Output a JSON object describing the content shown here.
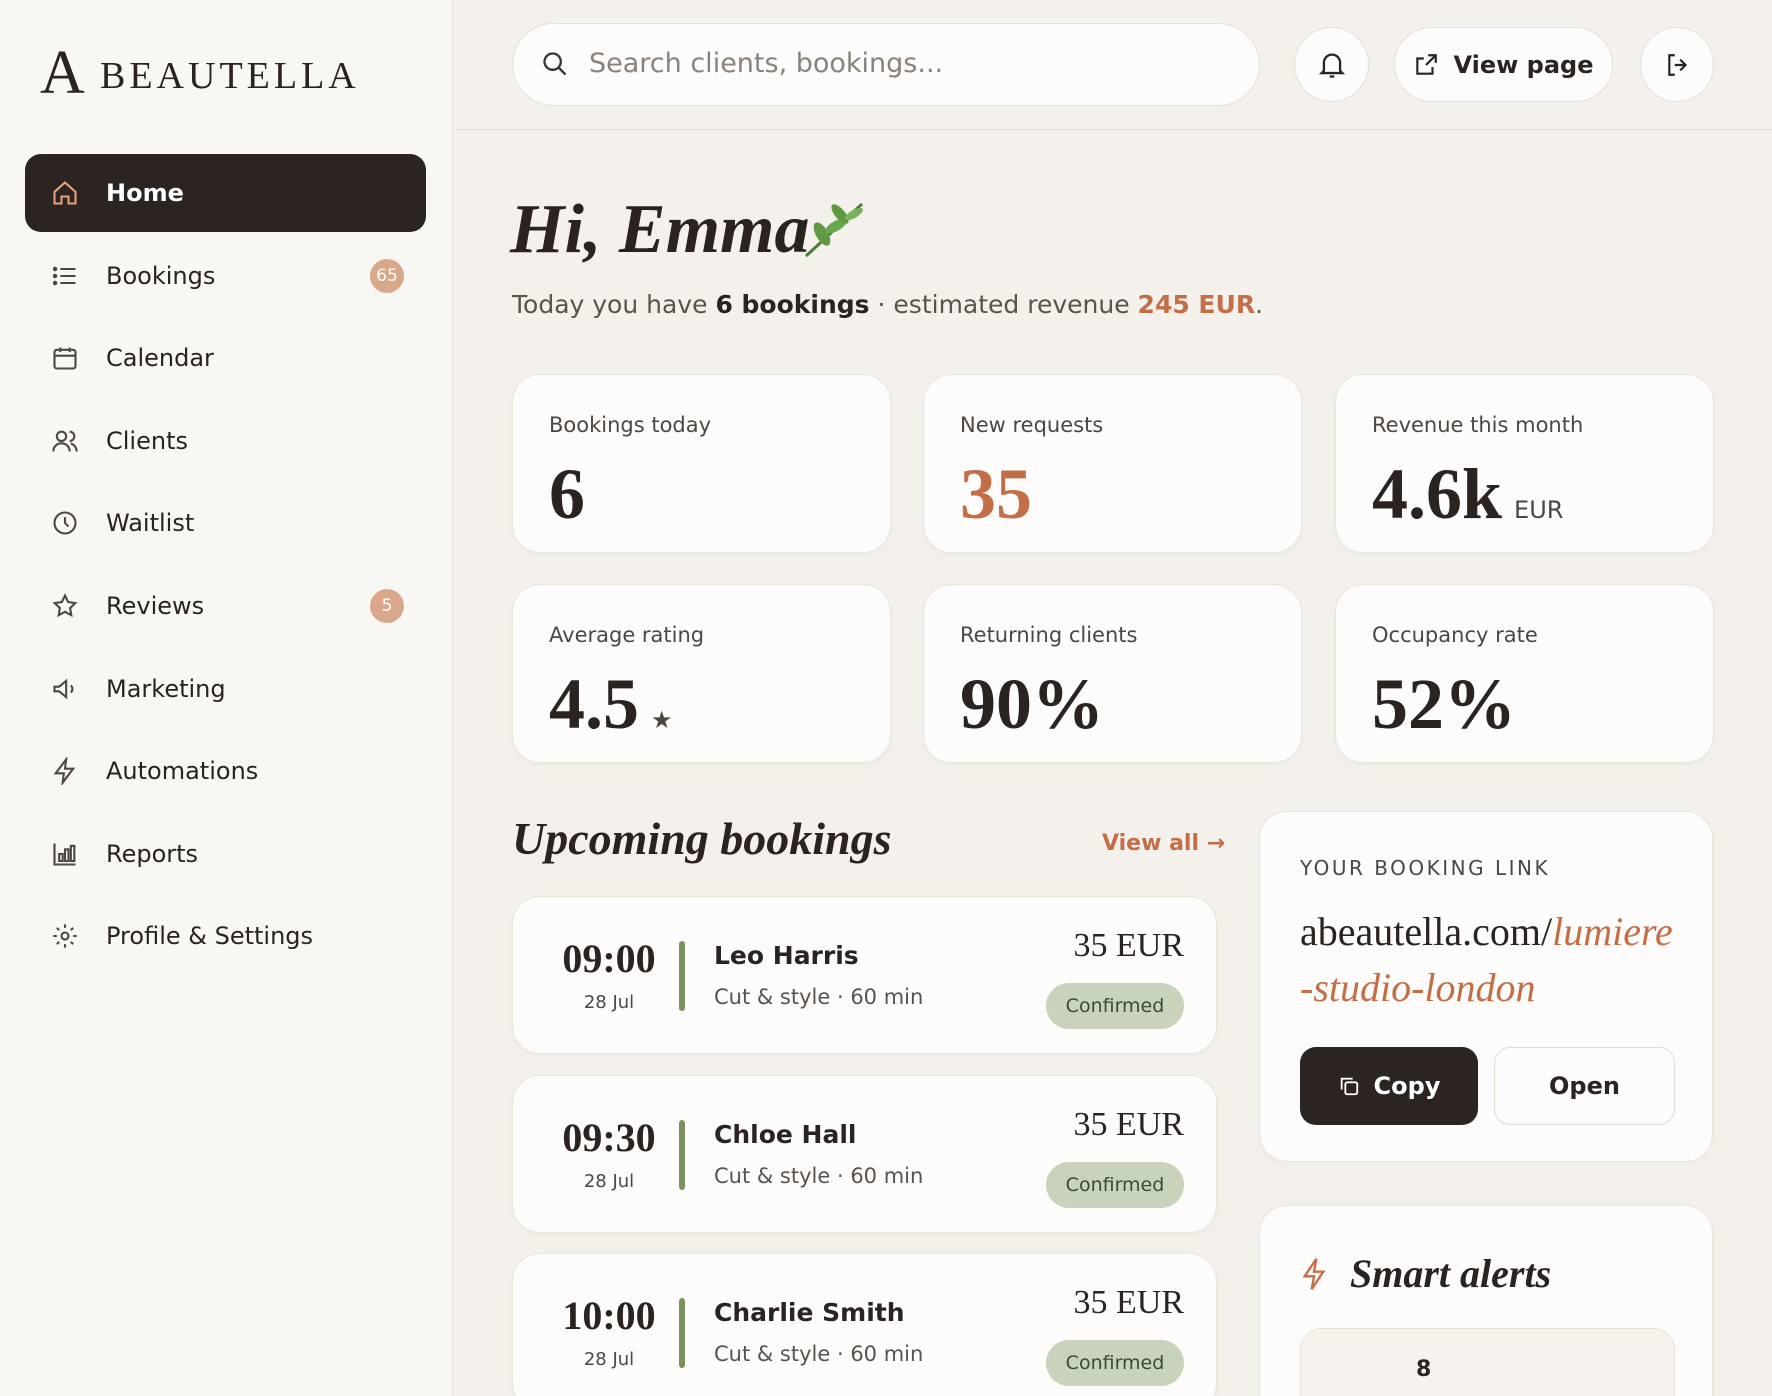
{
  "brand": {
    "mark": "A",
    "name": "BEAUTELLA"
  },
  "nav": [
    {
      "label": "Home",
      "active": true
    },
    {
      "label": "Bookings",
      "badge": "65"
    },
    {
      "label": "Calendar"
    },
    {
      "label": "Clients"
    },
    {
      "label": "Waitlist"
    },
    {
      "label": "Reviews",
      "badge": "5"
    },
    {
      "label": "Marketing"
    },
    {
      "label": "Automations"
    },
    {
      "label": "Reports"
    },
    {
      "label": "Profile & Settings"
    }
  ],
  "topbar": {
    "search_placeholder": "Search clients, bookings...",
    "view_page": "View page"
  },
  "greeting": {
    "title": "Hi, Emma",
    "prefix": "Today you have",
    "bookings": "6 bookings",
    "middle": "· estimated revenue",
    "revenue": "245 EUR",
    "suffix": "."
  },
  "stats": [
    {
      "label": "Bookings today",
      "value": "6"
    },
    {
      "label": "New requests",
      "value": "35",
      "accent": true
    },
    {
      "label": "Revenue this month",
      "value": "4.6k",
      "unit": "EUR"
    },
    {
      "label": "Average rating",
      "value": "4.5",
      "unit": "★"
    },
    {
      "label": "Returning clients",
      "value": "90%"
    },
    {
      "label": "Occupancy rate",
      "value": "52%"
    }
  ],
  "upcoming": {
    "title": "Upcoming bookings",
    "view_all": "View all →",
    "items": [
      {
        "time": "09:00",
        "date": "28 Jul",
        "client": "Leo Harris",
        "service": "Cut & style · 60 min",
        "price": "35 EUR",
        "status": "Confirmed"
      },
      {
        "time": "09:30",
        "date": "28 Jul",
        "client": "Chloe Hall",
        "service": "Cut & style · 60 min",
        "price": "35 EUR",
        "status": "Confirmed"
      },
      {
        "time": "10:00",
        "date": "28 Jul",
        "client": "Charlie Smith",
        "service": "Cut & style · 60 min",
        "price": "35 EUR",
        "status": "Confirmed"
      }
    ]
  },
  "booking_link": {
    "heading": "YOUR BOOKING LINK",
    "domain": "abeautella.com/",
    "slug": "lumiere-studio-london",
    "copy": "Copy",
    "open": "Open"
  },
  "smart_alerts": {
    "title": "Smart alerts",
    "count": "8"
  }
}
